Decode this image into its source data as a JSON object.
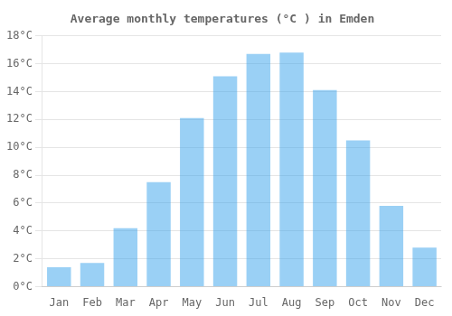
{
  "chart_data": {
    "type": "bar",
    "title": "Average monthly temperatures (°C ) in Emden",
    "categories": [
      "Jan",
      "Feb",
      "Mar",
      "Apr",
      "May",
      "Jun",
      "Jul",
      "Aug",
      "Sep",
      "Oct",
      "Nov",
      "Dec"
    ],
    "values": [
      1.4,
      1.7,
      4.2,
      7.5,
      12.1,
      15.1,
      16.7,
      16.8,
      14.1,
      10.5,
      5.8,
      2.8
    ],
    "ylim": [
      0,
      18
    ],
    "yticks": [
      {
        "value": 0,
        "label": "0°C"
      },
      {
        "value": 2,
        "label": "2°C"
      },
      {
        "value": 4,
        "label": "4°C"
      },
      {
        "value": 6,
        "label": "6°C"
      },
      {
        "value": 8,
        "label": "8°C"
      },
      {
        "value": 10,
        "label": "10°C"
      },
      {
        "value": 12,
        "label": "12°C"
      },
      {
        "value": 14,
        "label": "14°C"
      },
      {
        "value": 16,
        "label": "16°C"
      },
      {
        "value": 18,
        "label": "18°C"
      }
    ],
    "grid": true
  }
}
